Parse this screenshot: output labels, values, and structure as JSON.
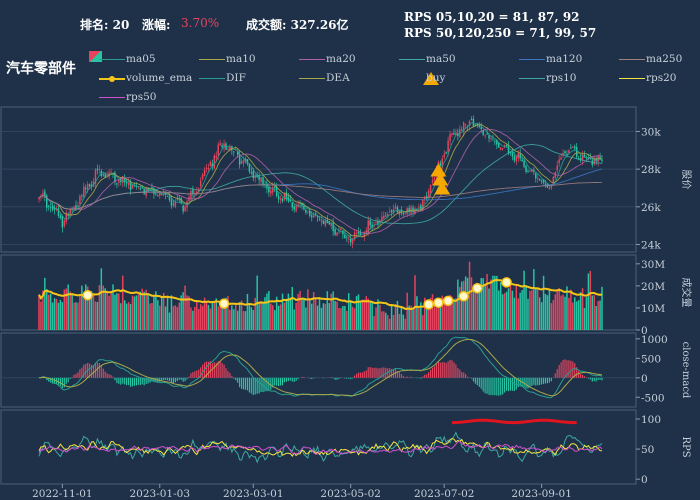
{
  "header": {
    "rank_label": "排名: 20",
    "change_label": "涨幅:",
    "change_value": "3.70%",
    "turnover": "成交额: 327.26亿",
    "rps_short": "RPS 05,10,20 = 81, 87, 92",
    "rps_long": "RPS 50,120,250 = 71, 99, 57",
    "sector": "汽车零部件"
  },
  "legend": [
    {
      "name": "ma05",
      "color": "#2a9d8f"
    },
    {
      "name": "ma10",
      "color": "#a8a84a"
    },
    {
      "name": "ma20",
      "color": "#b05fa8"
    },
    {
      "name": "ma50",
      "color": "#3fa8a0"
    },
    {
      "name": "ma120",
      "color": "#3b78c4"
    },
    {
      "name": "ma250",
      "color": "#a08080"
    },
    {
      "name": "volume_ema",
      "color": "#f5c518"
    },
    {
      "name": "DIF",
      "color": "#2a9d8f"
    },
    {
      "name": "DEA",
      "color": "#a8a84a"
    },
    {
      "name": "buy",
      "color": "#f5a800"
    },
    {
      "name": "rps10",
      "color": "#3fa8a0"
    },
    {
      "name": "rps20",
      "color": "#f5e642"
    },
    {
      "name": "rps50",
      "color": "#d050d0"
    }
  ],
  "colors": {
    "up": "#e8435e",
    "down": "#26c6a4",
    "background": "#1e3148",
    "panel_border": "#4a6078",
    "grid": "#2e4560"
  },
  "chart_data": {
    "type": "candlestick",
    "x_ticks": [
      "2022-11-01",
      "2023-01-03",
      "2023-03-01",
      "2023-05-02",
      "2023-07-02",
      "2023-09-01"
    ],
    "price": {
      "ylabel": "股价",
      "ticks": [
        "24k",
        "26k",
        "28k",
        "30k"
      ],
      "ylim": [
        23600,
        31300
      ],
      "key_closes": [
        {
          "x": 0,
          "v": 26700
        },
        {
          "x": 12,
          "v": 25200
        },
        {
          "x": 30,
          "v": 27800
        },
        {
          "x": 60,
          "v": 26800
        },
        {
          "x": 75,
          "v": 26000
        },
        {
          "x": 95,
          "v": 29500
        },
        {
          "x": 115,
          "v": 27200
        },
        {
          "x": 140,
          "v": 25600
        },
        {
          "x": 160,
          "v": 24300
        },
        {
          "x": 180,
          "v": 25700
        },
        {
          "x": 196,
          "v": 25900
        },
        {
          "x": 212,
          "v": 29800
        },
        {
          "x": 222,
          "v": 30600
        },
        {
          "x": 235,
          "v": 29300
        },
        {
          "x": 250,
          "v": 28200
        },
        {
          "x": 262,
          "v": 27000
        },
        {
          "x": 270,
          "v": 29100
        },
        {
          "x": 283,
          "v": 28500
        }
      ]
    },
    "volume": {
      "ylabel": "成交量",
      "ticks": [
        "0",
        "10M",
        "20M",
        "30M"
      ],
      "ylim": [
        0,
        34000000
      ]
    },
    "macd": {
      "ylabel": "close-macd",
      "ticks": [
        "-500",
        "0",
        "500",
        "1000"
      ],
      "ylim": [
        -750,
        1150
      ]
    },
    "rps": {
      "ylabel": "RPS",
      "ticks": [
        "0",
        "50",
        "100"
      ],
      "ylim": [
        -8,
        115
      ]
    },
    "buy_signals": [
      205,
      206,
      207
    ]
  }
}
